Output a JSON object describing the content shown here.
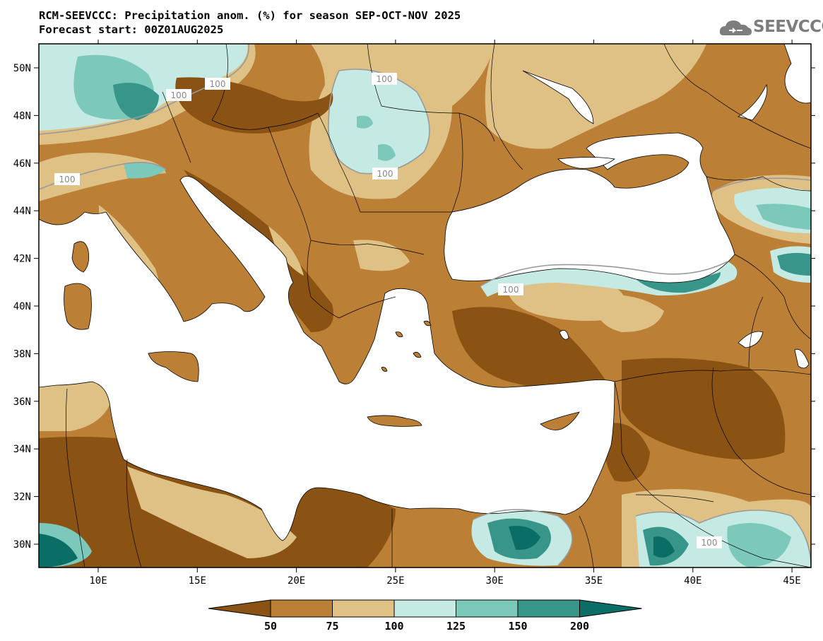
{
  "header": {
    "title_line1": "RCM-SEEVCCC: Precipitation anom. (%) for season SEP-OCT-NOV 2025",
    "title_line2": "Forecast start: 00Z01AUG2025",
    "logo_text": "SEEVCCC"
  },
  "map": {
    "lon_labels": [
      "10E",
      "15E",
      "20E",
      "25E",
      "30E",
      "35E",
      "40E",
      "45E"
    ],
    "lat_labels": [
      "50N",
      "48N",
      "46N",
      "44N",
      "42N",
      "40N",
      "38N",
      "36N",
      "34N",
      "32N",
      "30N"
    ],
    "contour_labels": [
      "100",
      "100",
      "100",
      "100",
      "100",
      "100",
      "100"
    ]
  },
  "colorbar": {
    "levels": [
      "50",
      "75",
      "100",
      "125",
      "150",
      "200"
    ],
    "colors": [
      "#8a5213",
      "#bb7f35",
      "#dfc185",
      "#c5eae3",
      "#7cc8bb",
      "#38958a",
      "#0b6e66"
    ]
  }
}
